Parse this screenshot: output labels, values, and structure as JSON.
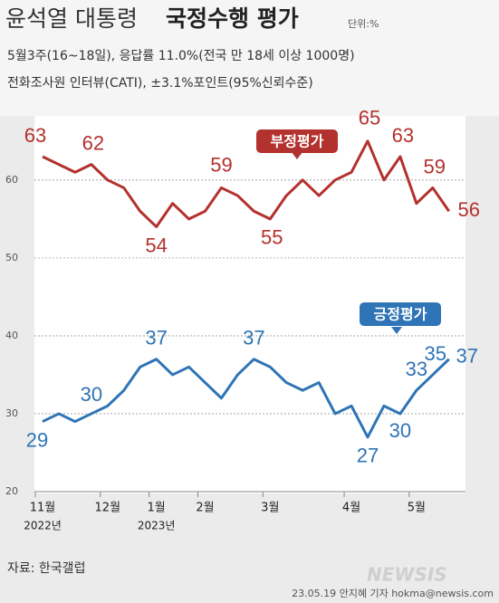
{
  "chart_data": {
    "type": "line",
    "title_prefix": "윤석열 대통령",
    "title": "국정수행 평가",
    "unit": "단위:%",
    "subtitle_lines": [
      "5월3주(16~18일), 응답률 11.0%(전국 만 18세 이상 1000명)",
      "전화조사원 인터뷰(CATI), ±3.1%포인트(95%신뢰수준)"
    ],
    "categories": [
      "11월",
      null,
      null,
      null,
      "12월",
      null,
      null,
      "1월",
      null,
      null,
      "2월",
      null,
      null,
      null,
      "3월",
      null,
      null,
      null,
      null,
      "4월",
      null,
      null,
      null,
      "5월",
      null,
      null
    ],
    "x_sublabels": [
      "2022년",
      null,
      null,
      null,
      null,
      null,
      null,
      "2023년",
      null,
      null,
      null,
      null,
      null,
      null,
      null,
      null,
      null,
      null,
      null,
      null,
      null,
      null,
      null,
      null,
      null,
      null
    ],
    "series": [
      {
        "name": "부정평가",
        "color": "#b3312e",
        "values": [
          63,
          62,
          61,
          62,
          60,
          59,
          56,
          54,
          57,
          55,
          56,
          59,
          58,
          56,
          55,
          58,
          60,
          58,
          60,
          61,
          65,
          60,
          63,
          57,
          59,
          56
        ]
      },
      {
        "name": "긍정평가",
        "color": "#2f74b6",
        "values": [
          29,
          30,
          29,
          30,
          31,
          33,
          36,
          37,
          35,
          36,
          34,
          32,
          35,
          37,
          36,
          34,
          33,
          34,
          30,
          31,
          27,
          31,
          30,
          33,
          35,
          37
        ]
      }
    ],
    "ylim": [
      20,
      68
    ],
    "yticks": [
      20,
      30,
      40,
      50,
      60
    ],
    "grid": true,
    "source": "자료: 한국갤럽",
    "credit": "23.05.19 안지혜 기자 hokma@newsis.com",
    "logo": "NEWSIS"
  }
}
